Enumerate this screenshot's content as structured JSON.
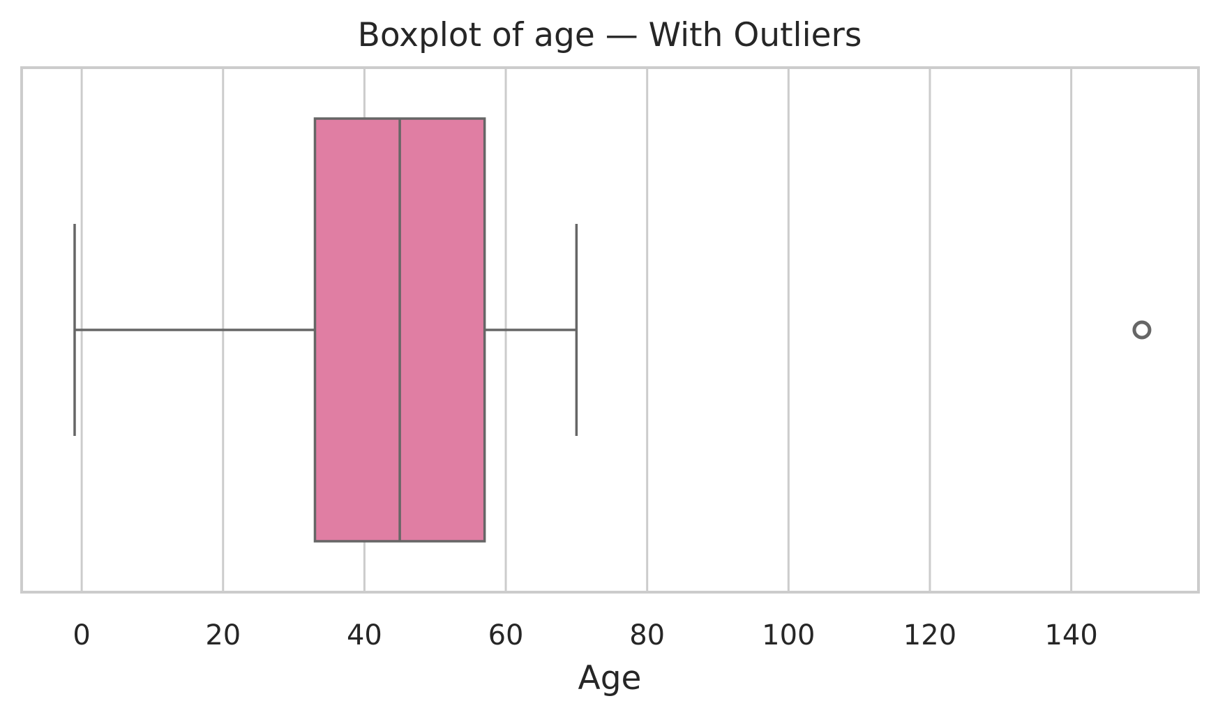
{
  "chart_data": {
    "type": "boxplot",
    "title": "Boxplot of age — With Outliers",
    "xlabel": "Age",
    "ylabel": "",
    "xlim": [
      -8.5,
      158
    ],
    "xticks": [
      0,
      20,
      40,
      60,
      80,
      100,
      120,
      140
    ],
    "xtick_labels": [
      "0",
      "20",
      "40",
      "60",
      "80",
      "100",
      "120",
      "140"
    ],
    "grid": true,
    "grid_axis": "x",
    "series": [
      {
        "min": -1,
        "q1": 33,
        "median": 45,
        "q3": 57,
        "max": 70,
        "outliers": [
          150
        ]
      }
    ],
    "colors": {
      "box_fill": "#e07ea3",
      "line": "#666666",
      "grid": "#cccccc",
      "text": "#262626"
    }
  }
}
